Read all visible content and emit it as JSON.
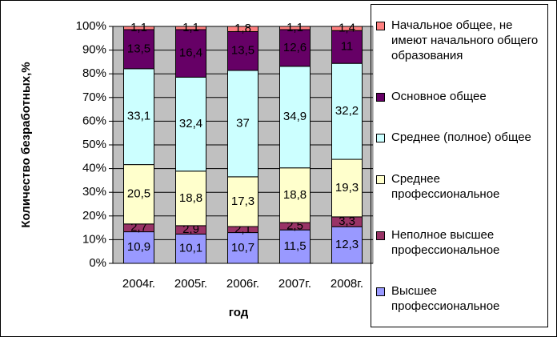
{
  "chart_data": {
    "type": "bar",
    "stacking": "percent",
    "y_axis_title": "Количество безработных,%",
    "x_axis_title": "год",
    "categories": [
      "2004г.",
      "2005г.",
      "2006г.",
      "2007г.",
      "2008г."
    ],
    "ylim": [
      0,
      100
    ],
    "yticks": [
      {
        "value": 0,
        "label": "0%"
      },
      {
        "value": 10,
        "label": "10%"
      },
      {
        "value": 20,
        "label": "20%"
      },
      {
        "value": 30,
        "label": "30%"
      },
      {
        "value": 40,
        "label": "40%"
      },
      {
        "value": 50,
        "label": "50%"
      },
      {
        "value": 60,
        "label": "60%"
      },
      {
        "value": 70,
        "label": "70%"
      },
      {
        "value": 80,
        "label": "80%"
      },
      {
        "value": 90,
        "label": "90%"
      },
      {
        "value": 100,
        "label": "100%"
      }
    ],
    "grid": true,
    "series": [
      {
        "name": "Высшее профессиональное",
        "color": "#9999ff",
        "values": [
          10.9,
          10.1,
          10.7,
          11.5,
          12.3
        ],
        "value_labels": [
          "10,9",
          "10,1",
          "10,7",
          "11,5",
          "12,3"
        ]
      },
      {
        "name": "Неполное высшее профессиональное",
        "color": "#993366",
        "values": [
          2.7,
          2.9,
          2.1,
          2.5,
          3.3
        ],
        "value_labels": [
          "2,7",
          "2,9",
          "2,1",
          "2,5",
          "3,3"
        ]
      },
      {
        "name": "Среднее профессиональное",
        "color": "#ffffcc",
        "values": [
          20.5,
          18.8,
          17.3,
          18.8,
          19.3
        ],
        "value_labels": [
          "20,5",
          "18,8",
          "17,3",
          "18,8",
          "19,3"
        ]
      },
      {
        "name": "Среднее (полное) общее",
        "color": "#ccffff",
        "values": [
          33.1,
          32.4,
          37,
          34.9,
          32.2
        ],
        "value_labels": [
          "33,1",
          "32,4",
          "37",
          "34,9",
          "32,2"
        ]
      },
      {
        "name": "Основное общее",
        "color": "#660066",
        "values": [
          13.5,
          16.4,
          13.5,
          12.6,
          11
        ],
        "value_labels": [
          "13,5",
          "16,4",
          "13,5",
          "12,6",
          "11"
        ]
      },
      {
        "name": "Начальное общее, не имеют начального общего образования",
        "color": "#ff8080",
        "values": [
          1.1,
          1.1,
          1.8,
          1.1,
          1.4
        ],
        "value_labels": [
          "1,1",
          "1,1",
          "1,8",
          "1,1",
          "1,4"
        ]
      }
    ]
  }
}
